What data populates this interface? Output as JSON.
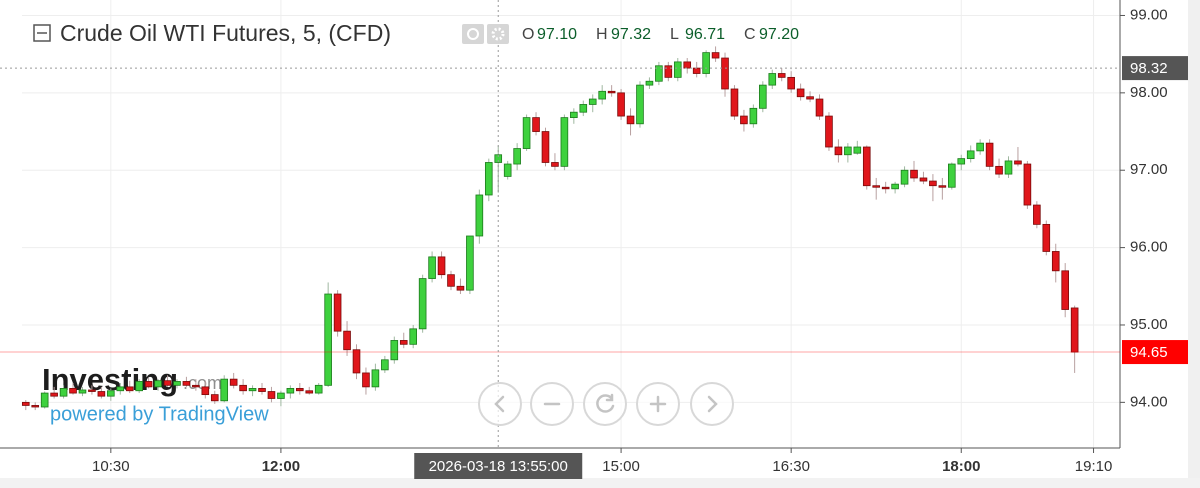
{
  "chart_data": {
    "type": "candlestick",
    "title": "Crude Oil WTI Futures, 5, (CFD)",
    "readout": [
      {
        "key": "O",
        "value": 97.1,
        "label": "97.10"
      },
      {
        "key": "H",
        "value": 97.32,
        "label": "97.32"
      },
      {
        "key": "L",
        "value": 96.71,
        "label": "96.71"
      },
      {
        "key": "C",
        "value": 97.2,
        "label": "97.20"
      }
    ],
    "x": [
      "09:45",
      "09:50",
      "09:55",
      "10:00",
      "10:05",
      "10:10",
      "10:15",
      "10:20",
      "10:25",
      "10:30",
      "10:35",
      "10:40",
      "10:45",
      "10:50",
      "10:55",
      "11:00",
      "11:05",
      "11:10",
      "11:15",
      "11:20",
      "11:25",
      "11:30",
      "11:35",
      "11:40",
      "11:45",
      "11:50",
      "11:55",
      "12:00",
      "12:05",
      "12:10",
      "12:15",
      "12:20",
      "12:25",
      "12:30",
      "12:35",
      "12:40",
      "12:45",
      "12:50",
      "12:55",
      "13:00",
      "13:05",
      "13:10",
      "13:15",
      "13:20",
      "13:25",
      "13:30",
      "13:35",
      "13:40",
      "13:45",
      "13:50",
      "13:55",
      "14:00",
      "14:05",
      "14:10",
      "14:15",
      "14:20",
      "14:25",
      "14:30",
      "14:35",
      "14:40",
      "14:45",
      "14:50",
      "14:55",
      "15:00",
      "15:05",
      "15:10",
      "15:15",
      "15:20",
      "15:25",
      "15:30",
      "15:35",
      "15:40",
      "15:45",
      "15:50",
      "15:55",
      "16:00",
      "16:05",
      "16:10",
      "16:15",
      "16:20",
      "16:25",
      "16:30",
      "16:35",
      "16:40",
      "16:45",
      "16:50",
      "16:55",
      "17:00",
      "17:05",
      "17:10",
      "17:15",
      "17:20",
      "17:25",
      "17:30",
      "17:35",
      "17:40",
      "17:45",
      "17:50",
      "17:55",
      "18:00",
      "18:05",
      "18:10",
      "18:15",
      "18:20",
      "18:25",
      "18:30",
      "18:35",
      "18:40",
      "18:45",
      "18:50",
      "18:55",
      "19:00"
    ],
    "open": [
      94.0,
      93.96,
      93.94,
      94.12,
      94.08,
      94.18,
      94.12,
      94.16,
      94.14,
      94.08,
      94.15,
      94.2,
      94.15,
      94.27,
      94.2,
      94.28,
      94.22,
      94.27,
      94.22,
      94.2,
      94.1,
      94.02,
      94.3,
      94.22,
      94.15,
      94.18,
      94.14,
      94.05,
      94.12,
      94.18,
      94.15,
      94.12,
      94.22,
      95.4,
      94.92,
      94.68,
      94.38,
      94.2,
      94.42,
      94.55,
      94.8,
      94.75,
      94.95,
      95.6,
      95.88,
      95.65,
      95.5,
      95.45,
      96.15,
      96.68,
      97.1,
      96.92,
      97.08,
      97.28,
      97.68,
      97.5,
      97.1,
      97.05,
      97.68,
      97.75,
      97.85,
      97.92,
      98.02,
      98.0,
      97.7,
      97.6,
      98.1,
      98.15,
      98.35,
      98.2,
      98.4,
      98.32,
      98.25,
      98.52,
      98.45,
      98.05,
      97.7,
      97.6,
      97.8,
      98.1,
      98.25,
      98.2,
      98.05,
      97.95,
      97.92,
      97.7,
      97.3,
      97.2,
      97.22,
      97.3,
      96.8,
      96.78,
      96.76,
      96.82,
      97.0,
      96.9,
      96.86,
      96.8,
      96.78,
      97.08,
      97.15,
      97.25,
      97.35,
      97.05,
      96.95,
      97.12,
      97.08,
      96.55,
      96.3,
      95.95,
      95.7,
      95.22
    ],
    "high": [
      94.03,
      94.0,
      94.14,
      94.2,
      94.22,
      94.25,
      94.2,
      94.22,
      94.2,
      94.18,
      94.25,
      94.28,
      94.3,
      94.32,
      94.3,
      94.35,
      94.3,
      94.33,
      94.3,
      94.28,
      94.15,
      94.35,
      94.38,
      94.3,
      94.22,
      94.25,
      94.2,
      94.15,
      94.22,
      94.25,
      94.2,
      94.25,
      95.55,
      95.45,
      95.05,
      94.75,
      94.45,
      94.5,
      94.6,
      94.85,
      94.9,
      95.0,
      95.65,
      95.95,
      95.95,
      95.7,
      95.6,
      96.15,
      96.75,
      97.15,
      97.32,
      97.12,
      97.35,
      97.72,
      97.75,
      97.55,
      97.22,
      97.72,
      97.8,
      97.9,
      97.98,
      98.1,
      98.1,
      98.05,
      97.8,
      98.15,
      98.2,
      98.4,
      98.4,
      98.45,
      98.45,
      98.4,
      98.55,
      98.6,
      98.52,
      98.1,
      97.78,
      97.85,
      98.15,
      98.3,
      98.32,
      98.28,
      98.12,
      98.02,
      97.98,
      97.75,
      97.4,
      97.35,
      97.38,
      97.32,
      96.9,
      96.85,
      96.85,
      97.05,
      97.12,
      96.98,
      96.95,
      96.9,
      97.1,
      97.2,
      97.32,
      97.4,
      97.4,
      97.15,
      97.18,
      97.3,
      97.12,
      96.6,
      96.35,
      96.05,
      95.8,
      95.25
    ],
    "low": [
      93.9,
      93.9,
      93.92,
      94.05,
      94.05,
      94.1,
      94.08,
      94.1,
      94.05,
      94.02,
      94.1,
      94.12,
      94.12,
      94.18,
      94.15,
      94.2,
      94.18,
      94.2,
      94.15,
      94.05,
      93.98,
      94.0,
      94.18,
      94.1,
      94.08,
      94.1,
      94.0,
      93.95,
      94.05,
      94.1,
      94.1,
      94.1,
      94.2,
      94.85,
      94.6,
      94.3,
      94.1,
      94.15,
      94.38,
      94.5,
      94.7,
      94.7,
      94.9,
      95.55,
      95.6,
      95.45,
      95.4,
      95.4,
      96.05,
      96.6,
      96.71,
      96.88,
      97.0,
      97.25,
      97.45,
      97.05,
      97.0,
      97.0,
      97.6,
      97.7,
      97.75,
      97.85,
      97.95,
      97.65,
      97.45,
      97.55,
      98.05,
      98.1,
      98.15,
      98.15,
      98.25,
      98.2,
      98.2,
      98.4,
      97.95,
      97.65,
      97.5,
      97.55,
      97.75,
      98.05,
      98.15,
      98.0,
      97.9,
      97.88,
      97.65,
      97.25,
      97.1,
      97.1,
      97.2,
      96.75,
      96.62,
      96.7,
      96.7,
      96.78,
      96.85,
      96.82,
      96.6,
      96.62,
      96.75,
      97.0,
      97.1,
      97.2,
      97.0,
      96.9,
      96.9,
      97.05,
      96.5,
      96.25,
      95.9,
      95.55,
      95.1,
      94.38
    ],
    "close": [
      93.96,
      93.94,
      94.12,
      94.08,
      94.18,
      94.12,
      94.16,
      94.14,
      94.08,
      94.15,
      94.2,
      94.15,
      94.27,
      94.2,
      94.28,
      94.22,
      94.27,
      94.22,
      94.2,
      94.1,
      94.02,
      94.3,
      94.22,
      94.15,
      94.18,
      94.14,
      94.05,
      94.12,
      94.18,
      94.15,
      94.12,
      94.22,
      95.4,
      94.92,
      94.68,
      94.38,
      94.2,
      94.42,
      94.55,
      94.8,
      94.75,
      94.95,
      95.6,
      95.88,
      95.65,
      95.5,
      95.45,
      96.15,
      96.68,
      97.1,
      97.2,
      97.08,
      97.28,
      97.68,
      97.5,
      97.1,
      97.05,
      97.68,
      97.75,
      97.85,
      97.92,
      98.02,
      98.0,
      97.7,
      97.6,
      98.1,
      98.15,
      98.35,
      98.2,
      98.4,
      98.32,
      98.25,
      98.52,
      98.45,
      98.05,
      97.7,
      97.6,
      97.8,
      98.1,
      98.25,
      98.2,
      98.05,
      97.95,
      97.92,
      97.7,
      97.3,
      97.2,
      97.3,
      97.3,
      96.8,
      96.78,
      96.76,
      96.82,
      97.0,
      96.9,
      96.86,
      96.8,
      96.78,
      97.08,
      97.15,
      97.25,
      97.35,
      97.05,
      96.95,
      97.12,
      97.08,
      96.55,
      96.3,
      95.95,
      95.7,
      95.2,
      94.65
    ],
    "up_color": "#3ed13e",
    "down_color": "#e0161b",
    "xlim": [
      "09:43",
      "19:24"
    ],
    "xticks": [
      "10:30",
      "12:00",
      "15:00",
      "16:30",
      "18:00",
      "19:10"
    ],
    "ylim": [
      93.41,
      99.2
    ],
    "yticks": [
      {
        "value": 94,
        "label": "94.00"
      },
      {
        "value": 95,
        "label": "95.00"
      },
      {
        "value": 96,
        "label": "96.00"
      },
      {
        "value": 97,
        "label": "97.00"
      },
      {
        "value": 98,
        "label": "98.00"
      },
      {
        "value": 99,
        "label": "99.00"
      }
    ],
    "grid": true,
    "last_price": {
      "value": 94.65,
      "label": "94.65",
      "color": "#ff0000"
    },
    "crosshair": {
      "time": "2026-03-18 13:55:00",
      "price": {
        "value": 98.32,
        "label": "98.32"
      }
    },
    "watermark": {
      "brand": "Investing",
      "suffix": ".com",
      "credit": "powered by TradingView"
    }
  }
}
